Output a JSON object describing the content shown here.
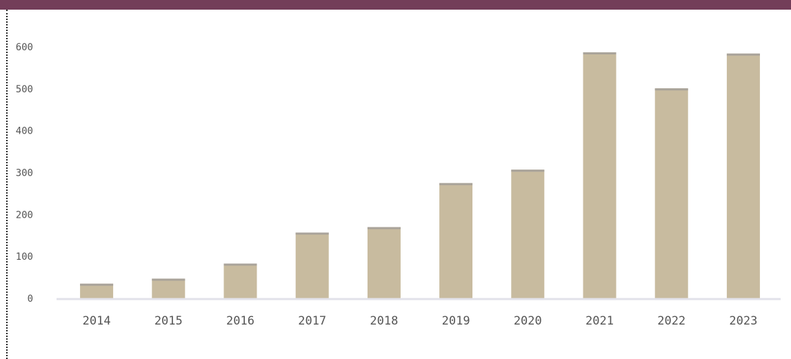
{
  "colors": {
    "header": "#733e59",
    "bar": "#c8bb9f",
    "bar_top": "#a9a39a",
    "axis": "#e2e2ea",
    "label": "#555555"
  },
  "chart_data": {
    "type": "bar",
    "title": "",
    "xlabel": "",
    "ylabel": "",
    "categories": [
      "2014",
      "2015",
      "2016",
      "2017",
      "2018",
      "2019",
      "2020",
      "2021",
      "2022",
      "2023"
    ],
    "values": [
      35,
      47,
      83,
      157,
      170,
      275,
      307,
      587,
      501,
      584
    ],
    "ylim": [
      0,
      600
    ],
    "yticks": [
      0,
      100,
      200,
      300,
      400,
      500,
      600
    ],
    "ytick_labels": [
      "0",
      "100",
      "200",
      "300",
      "400",
      "500",
      "600"
    ],
    "grid": false,
    "legend": "none"
  }
}
